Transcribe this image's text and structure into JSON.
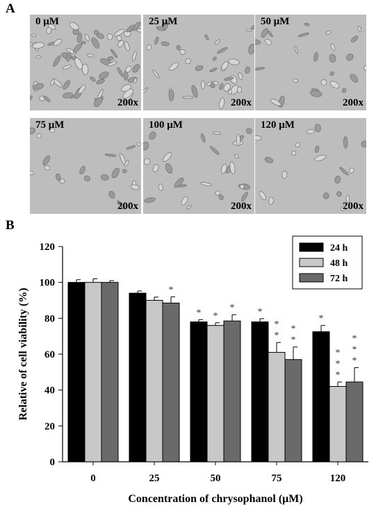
{
  "panel_a": {
    "label": "A",
    "images": [
      {
        "concentration": "0 μM",
        "magnification": "200x"
      },
      {
        "concentration": "25 μM",
        "magnification": "200x"
      },
      {
        "concentration": "50 μM",
        "magnification": "200x"
      },
      {
        "concentration": "75 μM",
        "magnification": "200x"
      },
      {
        "concentration": "100 μM",
        "magnification": "200x"
      },
      {
        "concentration": "120 μM",
        "magnification": "200x"
      }
    ]
  },
  "panel_b": {
    "label": "B"
  },
  "chart_data": {
    "type": "bar",
    "categories": [
      "0",
      "25",
      "50",
      "75",
      "120"
    ],
    "series": [
      {
        "name": "24 h",
        "color": "#000000",
        "values": [
          100,
          94,
          78,
          78,
          72.5
        ],
        "errors": [
          1.5,
          1.2,
          1.2,
          1.8,
          3.5
        ],
        "significance": [
          "",
          "",
          "*",
          "*",
          "*"
        ]
      },
      {
        "name": "48 h",
        "color": "#c8c8c8",
        "values": [
          100,
          90,
          76,
          61,
          42
        ],
        "errors": [
          2,
          1.8,
          1.5,
          5.5,
          2.5
        ],
        "significance": [
          "",
          "",
          "*",
          "**",
          "***"
        ]
      },
      {
        "name": "72 h",
        "color": "#6a6a6a",
        "values": [
          100,
          88.5,
          78.5,
          57,
          44.5
        ],
        "errors": [
          1,
          3.5,
          3.5,
          7,
          8
        ],
        "significance": [
          "",
          "*",
          "*",
          "**",
          "***"
        ]
      }
    ],
    "xlabel": "Concentration of chrysophanol (μM)",
    "ylabel": "Relative of cell viability (%)",
    "ylim": [
      0,
      120
    ],
    "yticks": [
      "0",
      "20",
      "40",
      "60",
      "80",
      "100",
      "120"
    ],
    "legend_position": "top-right",
    "grid": false
  }
}
